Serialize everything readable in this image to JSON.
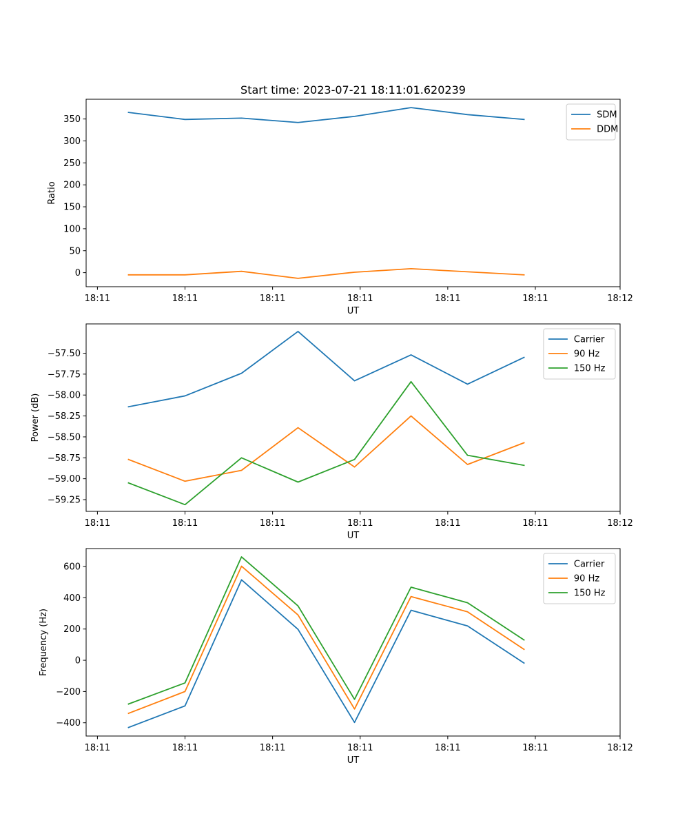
{
  "figure_title": "Start time: 2023-07-21 18:11:01.620239",
  "colors": {
    "blue": "#1f77b4",
    "orange": "#ff7f0e",
    "green": "#2ca02c"
  },
  "chart_data": [
    {
      "type": "line",
      "title": "Start time: 2023-07-21 18:11:01.620239",
      "xlabel": "UT",
      "ylabel": "Ratio",
      "x": [
        1.0,
        2.0,
        3.0,
        4.0,
        5.0,
        6.0,
        7.0,
        8.0
      ],
      "xlim": [
        0.25,
        9.7
      ],
      "xticks": [
        0.45,
        2.0,
        3.55,
        5.1,
        6.65,
        8.2,
        9.7
      ],
      "xtick_labels": [
        "18:11",
        "18:11",
        "18:11",
        "18:11",
        "18:11",
        "18:11",
        "18:12"
      ],
      "ylim": [
        -32,
        395
      ],
      "yticks": [
        0,
        50,
        100,
        150,
        200,
        250,
        300,
        350
      ],
      "ytick_labels": [
        "0",
        "50",
        "100",
        "150",
        "200",
        "250",
        "300",
        "350"
      ],
      "legend": "top-right",
      "series": [
        {
          "name": "SDM",
          "color": "#1f77b4",
          "values": [
            365,
            349,
            352,
            342,
            356,
            376,
            360,
            349
          ]
        },
        {
          "name": "DDM",
          "color": "#ff7f0e",
          "values": [
            -5,
            -5,
            3,
            -13,
            1,
            9,
            2,
            -5
          ]
        }
      ]
    },
    {
      "type": "line",
      "title": "",
      "xlabel": "UT",
      "ylabel": "Power (dB)",
      "x": [
        1.0,
        2.0,
        3.0,
        4.0,
        5.0,
        6.0,
        7.0,
        8.0
      ],
      "xlim": [
        0.25,
        9.7
      ],
      "xticks": [
        0.45,
        2.0,
        3.55,
        5.1,
        6.65,
        8.2,
        9.7
      ],
      "xtick_labels": [
        "18:11",
        "18:11",
        "18:11",
        "18:11",
        "18:11",
        "18:11",
        "18:12"
      ],
      "ylim": [
        -59.39,
        -57.15
      ],
      "yticks": [
        -59.25,
        -59.0,
        -58.75,
        -58.5,
        -58.25,
        -58.0,
        -57.75,
        -57.5
      ],
      "ytick_labels": [
        "−59.25",
        "−59.00",
        "−58.75",
        "−58.50",
        "−58.25",
        "−58.00",
        "−57.75",
        "−57.50"
      ],
      "legend": "top-right",
      "series": [
        {
          "name": "Carrier",
          "color": "#1f77b4",
          "values": [
            -58.14,
            -58.01,
            -57.74,
            -57.24,
            -57.83,
            -57.52,
            -57.87,
            -57.55
          ]
        },
        {
          "name": "90 Hz",
          "color": "#ff7f0e",
          "values": [
            -58.77,
            -59.03,
            -58.9,
            -58.39,
            -58.86,
            -58.25,
            -58.83,
            -58.57
          ]
        },
        {
          "name": "150 Hz",
          "color": "#2ca02c",
          "values": [
            -59.05,
            -59.31,
            -58.75,
            -59.04,
            -58.77,
            -57.84,
            -58.72,
            -58.84
          ]
        }
      ]
    },
    {
      "type": "line",
      "title": "",
      "xlabel": "UT",
      "ylabel": "Frequency (Hz)",
      "x": [
        1.0,
        2.0,
        3.0,
        4.0,
        5.0,
        6.0,
        7.0,
        8.0
      ],
      "xlim": [
        0.25,
        9.7
      ],
      "xticks": [
        0.45,
        2.0,
        3.55,
        5.1,
        6.65,
        8.2,
        9.7
      ],
      "xtick_labels": [
        "18:11",
        "18:11",
        "18:11",
        "18:11",
        "18:11",
        "18:11",
        "18:12"
      ],
      "ylim": [
        -485,
        715
      ],
      "yticks": [
        -400,
        -200,
        0,
        200,
        400,
        600
      ],
      "ytick_labels": [
        "−400",
        "−200",
        "0",
        "200",
        "400",
        "600"
      ],
      "legend": "top-right",
      "series": [
        {
          "name": "Carrier",
          "color": "#1f77b4",
          "values": [
            -430,
            -292,
            515,
            198,
            -398,
            320,
            220,
            -18
          ]
        },
        {
          "name": "90 Hz",
          "color": "#ff7f0e",
          "values": [
            -340,
            -200,
            602,
            290,
            -312,
            408,
            310,
            70
          ]
        },
        {
          "name": "150 Hz",
          "color": "#2ca02c",
          "values": [
            -280,
            -145,
            662,
            348,
            -250,
            468,
            368,
            130
          ]
        }
      ]
    }
  ]
}
